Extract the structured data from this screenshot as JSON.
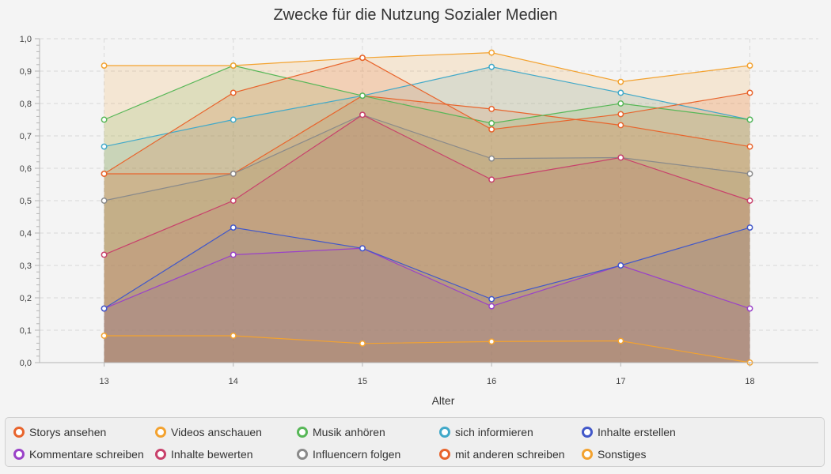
{
  "chart_data": {
    "type": "area",
    "title": "Zwecke für die Nutzung Sozialer Medien",
    "xlabel": "Alter",
    "ylabel": "",
    "x": [
      13,
      14,
      15,
      16,
      17,
      18
    ],
    "x_tick_labels": [
      "13",
      "14",
      "15",
      "16",
      "17",
      "18"
    ],
    "ylim": [
      0,
      1
    ],
    "y_tick_labels": [
      "0,0",
      "0,1",
      "0,2",
      "0,3",
      "0,4",
      "0,5",
      "0,6",
      "0,7",
      "0,8",
      "0,9",
      "1,0"
    ],
    "grid": true,
    "legend_position": "bottom",
    "series": [
      {
        "name": "Storys ansehen",
        "color": "#e8642c",
        "values": [
          0.583,
          0.833,
          0.941,
          0.72,
          0.767,
          0.833
        ]
      },
      {
        "name": "Videos anschauen",
        "color": "#f3a22f",
        "values": [
          0.917,
          0.917,
          0.941,
          0.957,
          0.867,
          0.917
        ]
      },
      {
        "name": "Musik anhören",
        "color": "#57b757",
        "values": [
          0.75,
          0.917,
          0.824,
          0.739,
          0.8,
          0.75
        ]
      },
      {
        "name": "sich informieren",
        "color": "#41a9c9",
        "values": [
          0.667,
          0.75,
          0.824,
          0.913,
          0.833,
          0.75
        ]
      },
      {
        "name": "Inhalte erstellen",
        "color": "#4258c9",
        "values": [
          0.167,
          0.417,
          0.353,
          0.196,
          0.3,
          0.417
        ]
      },
      {
        "name": "Kommentare schreiben",
        "color": "#9a42c8",
        "values": [
          0.167,
          0.333,
          0.353,
          0.174,
          0.3,
          0.167
        ]
      },
      {
        "name": "Inhalte bewerten",
        "color": "#c8416b",
        "values": [
          0.333,
          0.5,
          0.765,
          0.565,
          0.633,
          0.5
        ]
      },
      {
        "name": "Influencern folgen",
        "color": "#8a8a8a",
        "values": [
          0.5,
          0.583,
          0.765,
          0.63,
          0.633,
          0.583
        ]
      },
      {
        "name": "mit anderen schreiben",
        "color": "#e8642c",
        "values": [
          0.583,
          0.583,
          0.824,
          0.783,
          0.733,
          0.667
        ]
      },
      {
        "name": "Sonstiges",
        "color": "#f3a22f",
        "values": [
          0.083,
          0.083,
          0.059,
          0.065,
          0.067,
          0.0
        ]
      }
    ]
  }
}
